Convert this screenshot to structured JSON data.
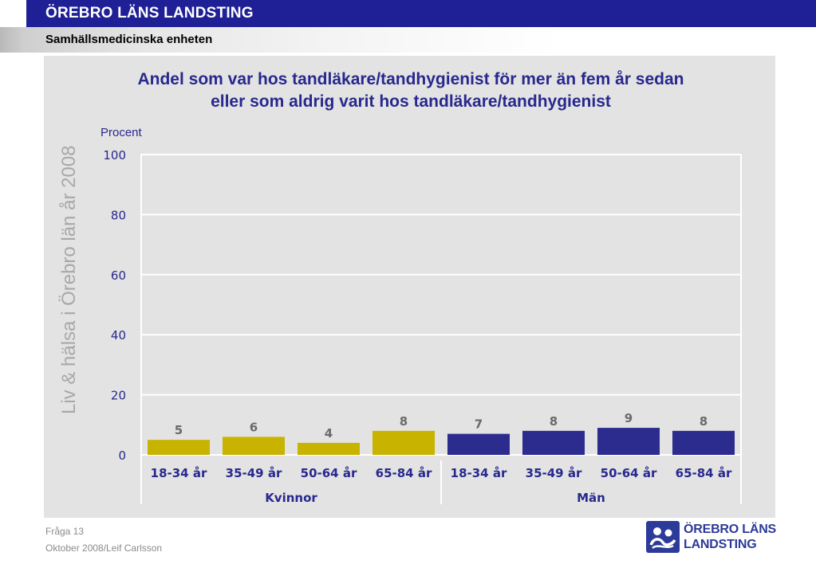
{
  "header": {
    "organization": "ÖREBRO LÄNS LANDSTING",
    "unit": "Samhällsmedicinska enheten"
  },
  "side_text": "Liv & hälsa i Örebro län år 2008",
  "footer": {
    "question": "Fråga 13",
    "author": "Oktober 2008/Leif Carlsson"
  },
  "logo": {
    "line1": "ÖREBRO LÄNS",
    "line2": "LANDSTING",
    "icon": "county-council-logo-icon"
  },
  "colors": {
    "women": "#c8b400",
    "men": "#2c2c8f",
    "title": "#28288e",
    "header": "#1f1f96"
  },
  "chart_data": {
    "type": "bar",
    "title_line1": "Andel som var hos tandläkare/tandhygienist för mer än fem år sedan",
    "title_line2": "eller som aldrig varit hos tandläkare/tandhygienist",
    "ylabel": "Procent",
    "ylim": [
      0,
      100
    ],
    "yticks": [
      0,
      20,
      40,
      60,
      80,
      100
    ],
    "grid": true,
    "categories": [
      "18-34 år",
      "35-49 år",
      "50-64 år",
      "65-84 år",
      "18-34 år",
      "35-49 år",
      "50-64 år",
      "65-84 år"
    ],
    "groups": [
      {
        "name": "Kvinnor",
        "color": "#c8b400",
        "categories": [
          "18-34 år",
          "35-49 år",
          "50-64 år",
          "65-84 år"
        ],
        "values": [
          5,
          6,
          4,
          8
        ]
      },
      {
        "name": "Män",
        "color": "#2c2c8f",
        "categories": [
          "18-34 år",
          "35-49 år",
          "50-64 år",
          "65-84 år"
        ],
        "values": [
          7,
          8,
          9,
          8
        ]
      }
    ]
  }
}
